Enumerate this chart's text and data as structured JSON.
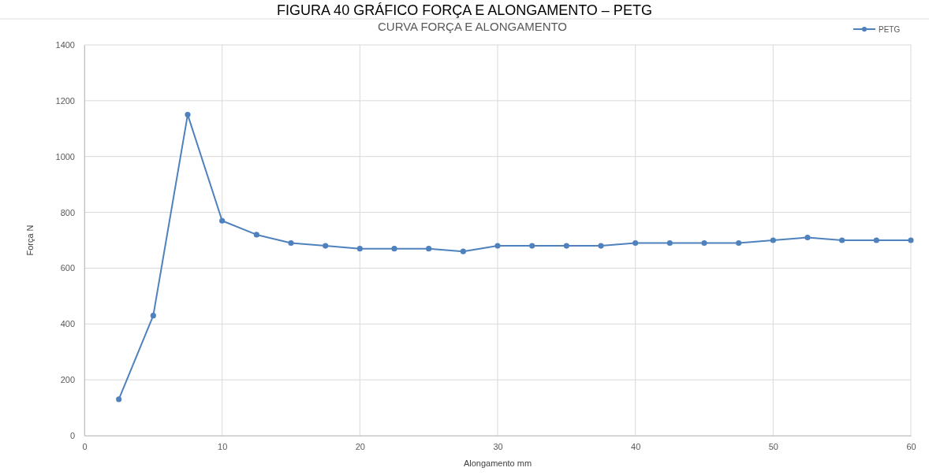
{
  "chart_data": {
    "type": "line",
    "title": "FIGURA 40 GRÁFICO FORÇA E ALONGAMENTO – PETG",
    "subtitle": "CURVA FORÇA E ALONGAMENTO",
    "xlabel": "Alongamento mm",
    "ylabel": "Força N",
    "x": [
      2.5,
      5,
      7.5,
      10,
      12.5,
      15,
      17.5,
      20,
      22.5,
      25,
      27.5,
      30,
      32.5,
      35,
      37.5,
      40,
      42.5,
      45,
      47.5,
      50,
      52.5,
      55,
      57.5,
      60
    ],
    "series": [
      {
        "name": "PETG",
        "color": "#4f81bd",
        "values": [
          130,
          430,
          1150,
          770,
          720,
          690,
          680,
          670,
          670,
          670,
          660,
          680,
          680,
          680,
          680,
          690,
          690,
          690,
          690,
          700,
          710,
          700,
          700,
          700
        ]
      }
    ],
    "xlim": [
      0,
      60
    ],
    "xticks": [
      0,
      10,
      20,
      30,
      40,
      50,
      60
    ],
    "ylim": [
      0,
      1400
    ],
    "yticks": [
      0,
      200,
      400,
      600,
      800,
      1000,
      1200,
      1400
    ],
    "grid": true,
    "legend": "top right",
    "marker": "circle",
    "line_style": "solid"
  }
}
